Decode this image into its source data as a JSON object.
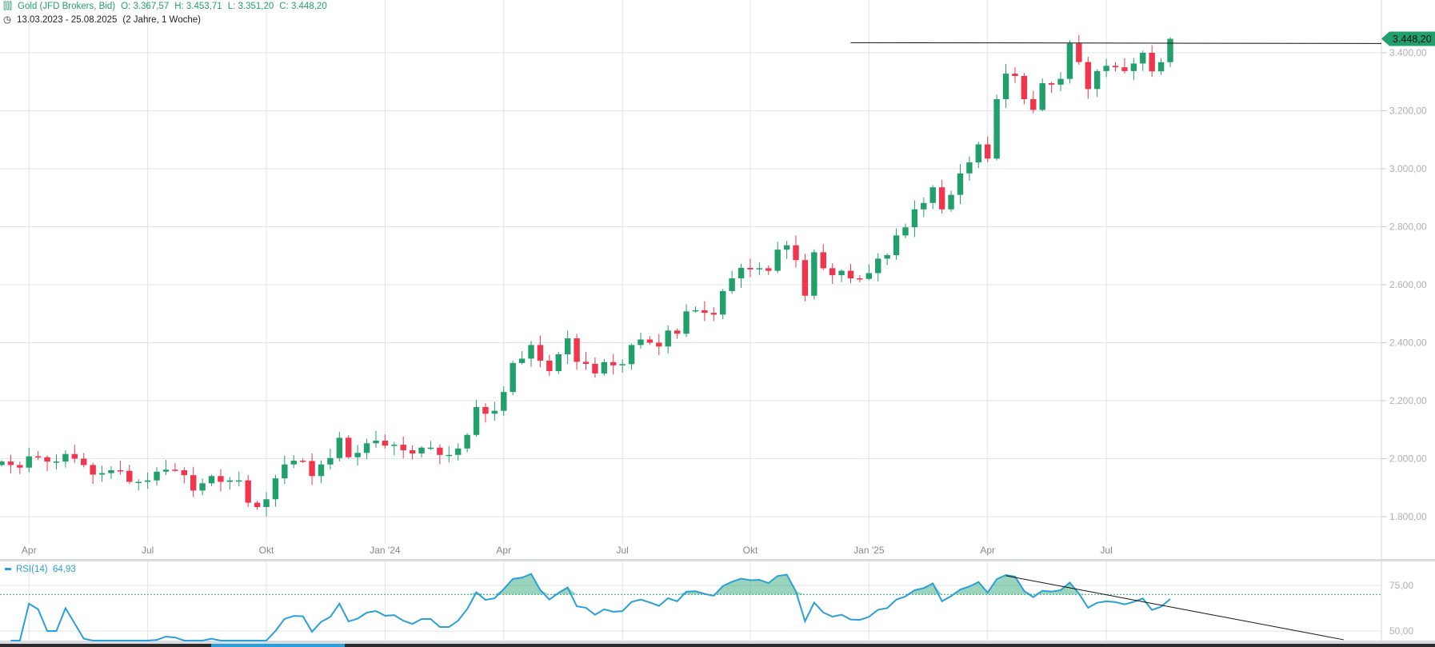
{
  "header": {
    "title": "Gold (JFD Brokers, Bid)",
    "open": "O: 3.367,57",
    "high": "H: 3.453,71",
    "low": "L: 3.351,20",
    "close": "C: 3.448,20",
    "range": "13.03.2023 - 25.08.2025",
    "period": "(2 Jahre, 1 Woche)",
    "icon": "candlestick-icon",
    "clock_icon": "clock-icon"
  },
  "colors": {
    "up": "#22a06b",
    "down": "#f0354c",
    "rsi": "#2a9fd8",
    "grid": "#e0e3eb",
    "axis_text": "#b0b0b0"
  },
  "rsi_label": {
    "name": "RSI(14)",
    "value": "64,93"
  },
  "last_price_label": "3.448,20",
  "chart_data": [
    {
      "type": "candlestick",
      "interval": "weekly",
      "start_date": "2023-03-13",
      "end_date": "2025-08-25",
      "last_candle": {
        "open": 3367.57,
        "high": 3453.71,
        "low": 3351.2,
        "close": 3448.2
      },
      "closes": [
        1990,
        1978,
        1969,
        2008,
        2005,
        1990,
        1990,
        2016,
        2000,
        1978,
        1945,
        1950,
        1960,
        1958,
        1920,
        1920,
        1925,
        1955,
        1962,
        1960,
        1943,
        1890,
        1915,
        1940,
        1920,
        1925,
        1925,
        1848,
        1833,
        1860,
        1932,
        1980,
        1993,
        1992,
        1940,
        1980,
        2002,
        2072,
        2005,
        2020,
        2053,
        2062,
        2045,
        2048,
        2029,
        2018,
        2038,
        2038,
        2013,
        2013,
        2035,
        2082,
        2178,
        2155,
        2165,
        2230,
        2330,
        2345,
        2392,
        2338,
        2302,
        2360,
        2415,
        2334,
        2327,
        2294,
        2333,
        2322,
        2326,
        2392,
        2411,
        2400,
        2387,
        2442,
        2431,
        2508,
        2512,
        2503,
        2497,
        2578,
        2622,
        2658,
        2653,
        2657,
        2648,
        2721,
        2736,
        2685,
        2562,
        2712,
        2657,
        2633,
        2648,
        2622,
        2620,
        2640,
        2690,
        2702,
        2770,
        2798,
        2860,
        2882,
        2936,
        2860,
        2910,
        2984,
        3022,
        3084,
        3035,
        3240,
        3328,
        3320,
        3240,
        3203,
        3295,
        3290,
        3310,
        3432,
        3368,
        3275,
        3337,
        3355,
        3350,
        3337,
        3363,
        3400,
        3336,
        3367.57,
        3448.2
      ],
      "y_axis": {
        "ticks": [
          1800,
          2000,
          2200,
          2400,
          2600,
          2800,
          3000,
          3200,
          3400
        ],
        "tick_labels": [
          "1.800,00",
          "2.000,00",
          "2.200,00",
          "2.400,00",
          "2.600,00",
          "2.800,00",
          "3.000,00",
          "3.200,00",
          "3.400,00"
        ],
        "range": [
          1700,
          3500
        ]
      },
      "x_axis": {
        "ticks": [
          {
            "date": "2023-04-03",
            "label": "Apr"
          },
          {
            "date": "2023-07-03",
            "label": "Jul"
          },
          {
            "date": "2023-10-02",
            "label": "Okt"
          },
          {
            "date": "2024-01-01",
            "label": "Jan '24"
          },
          {
            "date": "2024-04-01",
            "label": "Apr"
          },
          {
            "date": "2024-07-01",
            "label": "Jul"
          },
          {
            "date": "2024-10-07",
            "label": "Okt"
          },
          {
            "date": "2025-01-06",
            "label": "Jan '25"
          },
          {
            "date": "2025-04-07",
            "label": "Apr"
          },
          {
            "date": "2025-07-07",
            "label": "Jul"
          }
        ]
      },
      "grid": true,
      "trendline": {
        "from": {
          "date": "2024-12-23",
          "price": 3435
        },
        "to": {
          "date": "2026-02-09",
          "price": 3432
        }
      }
    },
    {
      "type": "line",
      "name": "RSI(14)",
      "period": 14,
      "y_axis": {
        "ticks": [
          50,
          75
        ],
        "tick_labels": [
          "50,00",
          "75,00"
        ],
        "range": [
          45,
          89
        ]
      },
      "overbought_level": 70,
      "trendline": {
        "from": {
          "date": "2025-04-21",
          "value": 80.3
        },
        "to": {
          "date": "2026-01-05",
          "value": 45.2
        }
      }
    }
  ]
}
